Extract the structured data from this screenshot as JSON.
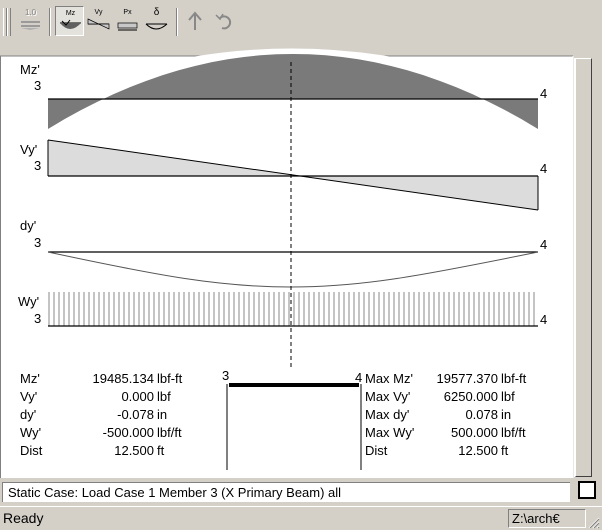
{
  "toolbar": {
    "buttons": [
      {
        "icon": "beam-scale-icon",
        "caption": "1.0",
        "state": "disabled"
      },
      {
        "icon": "moment-mz-icon",
        "caption": "Mz",
        "state": "pressed"
      },
      {
        "icon": "shear-vy-icon",
        "caption": "Vy",
        "state": "normal"
      },
      {
        "icon": "axial-px-icon",
        "caption": "Px",
        "state": "normal"
      },
      {
        "icon": "deflection-icon",
        "caption": "δ",
        "state": "normal"
      },
      {
        "icon": "up-arrow-icon",
        "caption": "",
        "state": "disabled"
      },
      {
        "icon": "undo-icon",
        "caption": "",
        "state": "disabled"
      }
    ]
  },
  "diagrams": {
    "mz": {
      "label": "Mz'",
      "start_node": "3",
      "end_node": "4"
    },
    "vy": {
      "label": "Vy'",
      "start_node": "3",
      "end_node": "4"
    },
    "dy": {
      "label": "dy'",
      "start_node": "3",
      "end_node": "4"
    },
    "wy": {
      "label": "Wy'",
      "start_node": "3",
      "end_node": "4"
    }
  },
  "member_view": {
    "start_node": "3",
    "end_node": "4"
  },
  "left_readout": [
    {
      "label": "Mz'",
      "value": "19485.134",
      "unit": "lbf-ft"
    },
    {
      "label": "Vy'",
      "value": "0.000",
      "unit": "lbf"
    },
    {
      "label": "dy'",
      "value": "-0.078",
      "unit": "in"
    },
    {
      "label": "Wy'",
      "value": "-500.000",
      "unit": "lbf/ft"
    },
    {
      "label": "Dist",
      "value": "12.500",
      "unit": "ft"
    }
  ],
  "right_readout": [
    {
      "label": "Max Mz'",
      "value": "19577.370",
      "unit": "lbf-ft"
    },
    {
      "label": "Max Vy'",
      "value": "6250.000",
      "unit": "lbf"
    },
    {
      "label": "Max dy'",
      "value": "0.078",
      "unit": "in"
    },
    {
      "label": "Max Wy'",
      "value": "500.000",
      "unit": "lbf/ft"
    },
    {
      "label": "Dist",
      "value": "12.500",
      "unit": "ft"
    }
  ],
  "static_case": "Static Case: Load Case 1  Member 3 (X Primary Beam)  all",
  "status": {
    "text": "Ready",
    "path": "Z:\\arch€"
  },
  "colors": {
    "moment_fill": "#7a7a7a",
    "shear_fill": "#dcdcdc",
    "bg": "#ffffff",
    "chrome": "#d4d0c8"
  }
}
